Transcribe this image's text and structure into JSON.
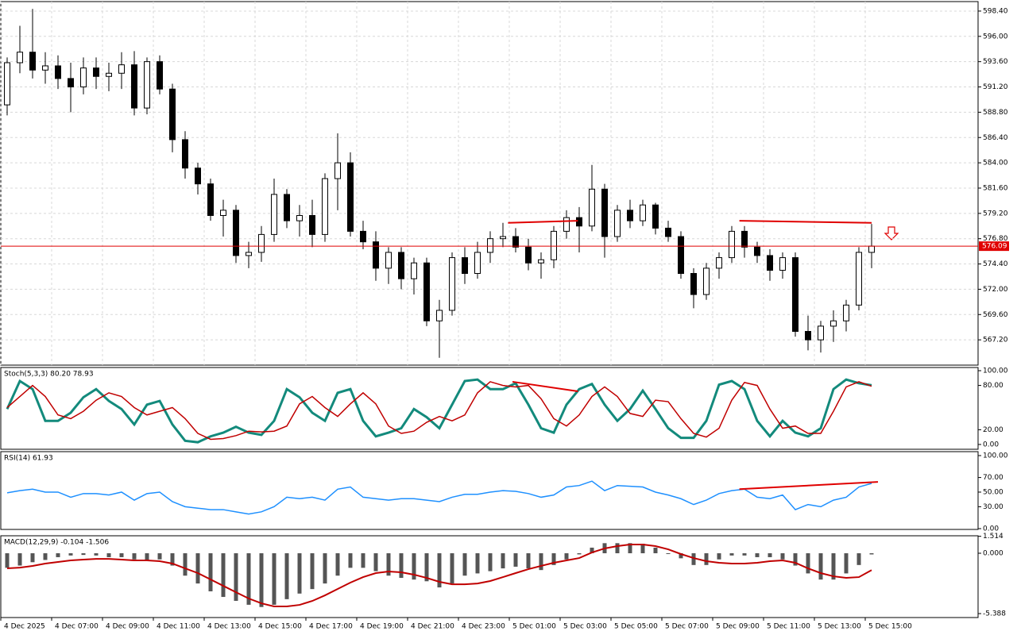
{
  "chart_data": [
    {
      "type": "candlestick",
      "grid": true,
      "bull_color": "#ffffff",
      "bear_color": "#000000",
      "categories": [
        "4 Dec 2025",
        null,
        null,
        null,
        "4 Dec 07:00",
        null,
        null,
        null,
        "4 Dec 09:00",
        null,
        null,
        null,
        "4 Dec 11:00",
        null,
        null,
        null,
        "4 Dec 13:00",
        null,
        null,
        null,
        "4 Dec 15:00",
        null,
        null,
        null,
        "4 Dec 17:00",
        null,
        null,
        null,
        "4 Dec 19:00",
        null,
        null,
        null,
        "4 Dec 21:00",
        null,
        null,
        null,
        "4 Dec 23:00",
        null,
        null,
        null,
        "5 Dec 01:00",
        null,
        null,
        null,
        "5 Dec 03:00",
        null,
        null,
        null,
        "5 Dec 05:00",
        null,
        null,
        null,
        "5 Dec 07:00",
        null,
        null,
        null,
        "5 Dec 09:00",
        null,
        null,
        null,
        "5 Dec 11:00",
        null,
        null,
        null,
        "5 Dec 13:00",
        null,
        null,
        null,
        "5 Dec 15:00"
      ],
      "open": [
        589.5,
        593.5,
        594.5,
        592.8,
        593.2,
        592.0,
        591.2,
        593.0,
        592.2,
        592.5,
        593.3,
        589.2,
        593.6,
        591.0,
        586.2,
        583.5,
        582.0,
        579.0,
        579.5,
        575.2,
        575.5,
        577.2,
        581.0,
        578.5,
        579.0,
        577.2,
        582.5,
        584.0,
        577.5,
        576.5,
        574.0,
        575.5,
        573.0,
        574.5,
        569.0,
        570.0,
        575.0,
        573.5,
        575.5,
        576.8,
        577.0,
        576.0,
        574.5,
        574.8,
        577.5,
        578.8,
        578.0,
        581.5,
        577.0,
        579.5,
        578.5,
        580.0,
        577.8,
        577.0,
        573.5,
        571.5,
        574.0,
        575.0,
        577.5,
        576.0,
        575.2,
        573.8,
        575.0,
        568.0,
        567.2,
        568.5,
        569.0,
        570.5,
        575.5
      ],
      "high": [
        594.0,
        597.0,
        598.6,
        594.5,
        594.2,
        593.5,
        594.0,
        594.0,
        593.5,
        594.5,
        594.6,
        594.0,
        594.2,
        591.5,
        587.0,
        584.0,
        582.5,
        580.5,
        580.0,
        576.5,
        578.0,
        582.5,
        581.5,
        580.0,
        580.5,
        583.0,
        586.8,
        585.0,
        578.5,
        577.5,
        576.0,
        576.0,
        575.0,
        575.0,
        571.0,
        575.5,
        576.0,
        576.5,
        577.5,
        578.3,
        577.8,
        576.8,
        575.5,
        578.0,
        579.5,
        579.8,
        583.8,
        582.0,
        580.0,
        580.5,
        580.5,
        580.2,
        578.5,
        577.5,
        574.0,
        574.5,
        575.5,
        578.0,
        578.0,
        576.5,
        575.8,
        575.5,
        575.5,
        569.5,
        569.0,
        570.0,
        571.0,
        576.0,
        578.2
      ],
      "low": [
        588.5,
        592.5,
        592.0,
        591.5,
        591.0,
        588.8,
        590.5,
        591.0,
        590.8,
        591.0,
        588.5,
        588.6,
        590.5,
        585.0,
        582.5,
        581.0,
        578.5,
        577.0,
        574.5,
        574.0,
        574.6,
        576.5,
        577.8,
        577.0,
        576.0,
        576.5,
        579.5,
        577.0,
        575.8,
        572.8,
        572.5,
        572.0,
        571.5,
        568.5,
        565.5,
        569.5,
        572.5,
        573.0,
        574.5,
        576.0,
        575.5,
        573.8,
        573.0,
        574.0,
        576.8,
        575.5,
        577.5,
        575.0,
        576.5,
        577.8,
        578.0,
        577.2,
        576.5,
        573.0,
        570.2,
        571.0,
        573.0,
        574.5,
        575.0,
        574.5,
        572.8,
        573.0,
        567.5,
        566.2,
        566.0,
        567.0,
        568.0,
        570.0,
        574.0
      ],
      "close": [
        593.5,
        594.5,
        592.8,
        593.2,
        592.0,
        591.2,
        593.0,
        592.2,
        592.5,
        593.3,
        589.2,
        593.6,
        591.0,
        586.2,
        583.5,
        582.0,
        579.0,
        579.5,
        575.2,
        575.5,
        577.2,
        581.0,
        578.5,
        579.0,
        577.2,
        582.5,
        584.0,
        577.5,
        576.5,
        574.0,
        575.5,
        573.0,
        574.5,
        569.0,
        570.0,
        575.0,
        573.5,
        575.5,
        576.8,
        577.0,
        576.0,
        574.5,
        574.8,
        577.5,
        578.8,
        578.0,
        581.5,
        577.0,
        579.5,
        578.5,
        580.0,
        577.8,
        577.0,
        573.5,
        571.5,
        574.0,
        575.0,
        577.5,
        576.0,
        575.2,
        573.8,
        575.0,
        568.0,
        567.2,
        568.5,
        569.0,
        570.5,
        575.5,
        576.09
      ],
      "last_price": 576.09,
      "last_price_color": "#e00000",
      "ylim": [
        564.8,
        599.3
      ],
      "yticks": [
        {
          "value": 598.4,
          "label": "598.40"
        },
        {
          "value": 596,
          "label": "596.00"
        },
        {
          "value": 593.6,
          "label": "593.60"
        },
        {
          "value": 591.2,
          "label": "591.20"
        },
        {
          "value": 588.8,
          "label": "588.80"
        },
        {
          "value": 586.4,
          "label": "586.40"
        },
        {
          "value": 584,
          "label": "584.00"
        },
        {
          "value": 581.6,
          "label": "581.60"
        },
        {
          "value": 579.2,
          "label": "579.20"
        },
        {
          "value": 576.8,
          "label": "576.80"
        },
        {
          "value": 574.4,
          "label": "574.40"
        },
        {
          "value": 572,
          "label": "572.00"
        },
        {
          "value": 569.6,
          "label": "569.60"
        },
        {
          "value": 567.2,
          "label": "567.20"
        }
      ],
      "trendlines": [
        {
          "x": [
            39.4,
            44.9
          ],
          "y": [
            578.3,
            578.5
          ],
          "color": "#e00000"
        },
        {
          "x": [
            57.6,
            68
          ],
          "y": [
            578.5,
            578.3
          ],
          "color": "#e00000"
        }
      ]
    },
    {
      "type": "line",
      "title": "Stoch(5,3,3) 80.20 78.93",
      "ylim": [
        -6.5,
        104.3
      ],
      "yticks": [
        {
          "value": 100,
          "label": "100.00"
        },
        {
          "value": 80,
          "label": "80.00"
        },
        {
          "value": 20,
          "label": "20.00"
        },
        {
          "value": 0,
          "label": "0.00"
        }
      ],
      "series": [
        {
          "color": "#138a7c",
          "width": 3,
          "values": [
            48,
            86,
            75,
            32,
            32,
            43,
            64,
            75,
            59,
            48,
            27,
            54,
            59,
            27,
            5,
            3,
            11,
            16,
            24,
            16,
            13,
            32,
            75,
            64,
            43,
            32,
            70,
            75,
            32,
            11,
            16,
            22,
            48,
            37,
            22,
            54,
            86,
            88,
            75,
            75,
            83,
            54,
            22,
            16,
            54,
            75,
            82,
            54,
            32,
            48,
            73,
            48,
            22,
            9,
            9,
            32,
            81,
            86,
            75,
            32,
            11,
            32,
            16,
            11,
            22,
            75,
            88,
            83,
            80.2
          ]
        },
        {
          "color": "#c00000",
          "width": 1.5,
          "values": [
            50,
            65,
            80,
            65,
            40,
            35,
            45,
            60,
            70,
            65,
            50,
            40,
            45,
            50,
            35,
            15,
            7,
            8,
            12,
            18,
            17,
            18,
            25,
            55,
            65,
            50,
            38,
            55,
            70,
            55,
            25,
            15,
            18,
            30,
            38,
            32,
            40,
            70,
            85,
            80,
            78,
            80,
            62,
            35,
            25,
            40,
            65,
            78,
            65,
            42,
            38,
            60,
            58,
            35,
            15,
            10,
            22,
            60,
            84,
            80,
            48,
            22,
            25,
            15,
            15,
            45,
            78,
            85,
            78.93
          ]
        }
      ],
      "trendlines": [
        {
          "x": [
            39.75,
            44.9
          ],
          "y": [
            85,
            72
          ],
          "color": "#e00000"
        }
      ]
    },
    {
      "type": "line",
      "title": "RSI(14) 61.93",
      "ylim": [
        -1.1,
        105.4
      ],
      "yticks": [
        {
          "value": 100,
          "label": "100.00"
        },
        {
          "value": 70,
          "label": "70.00"
        },
        {
          "value": 50,
          "label": "50.00"
        },
        {
          "value": 30,
          "label": "30.00"
        },
        {
          "value": 0,
          "label": "0.00"
        }
      ],
      "series": [
        {
          "color": "#1e90ff",
          "width": 1.5,
          "values": [
            49,
            52,
            54,
            50,
            50,
            43,
            48,
            48,
            46,
            50,
            39,
            48,
            50,
            37,
            30,
            28,
            26,
            26,
            23,
            20,
            23,
            30,
            43,
            41,
            43,
            39,
            54,
            57,
            43,
            41,
            39,
            41,
            41,
            39,
            37,
            43,
            47,
            47,
            50,
            52,
            51,
            48,
            43,
            46,
            57,
            59,
            65,
            52,
            59,
            58,
            57,
            50,
            46,
            41,
            33,
            39,
            48,
            52,
            54,
            43,
            41,
            46,
            26,
            33,
            30,
            39,
            43,
            57,
            61.93
          ]
        }
      ],
      "trendlines": [
        {
          "x": [
            57.6,
            68.5
          ],
          "y": [
            54,
            64
          ],
          "color": "#e00000"
        }
      ]
    },
    {
      "type": "combo",
      "title": "MACD(12,29,9) -0.104 -1.506",
      "ylim": [
        -5.74,
        1.56
      ],
      "yticks": [
        1.514,
        {
          "value": 0,
          "label": "0.000"
        },
        -5.388
      ],
      "series": [
        {
          "type": "bar",
          "color": "#555555",
          "values": [
            -1.3,
            -1.1,
            -0.8,
            -0.6,
            -0.35,
            -0.2,
            -0.15,
            -0.2,
            -0.35,
            -0.35,
            -0.55,
            -0.6,
            -0.55,
            -1.1,
            -2.0,
            -2.7,
            -3.4,
            -3.9,
            -4.25,
            -4.6,
            -4.8,
            -4.6,
            -4.1,
            -3.6,
            -3.2,
            -2.7,
            -2.0,
            -1.3,
            -1.3,
            -1.6,
            -2.0,
            -2.2,
            -2.35,
            -2.5,
            -3.05,
            -2.7,
            -2.0,
            -1.8,
            -1.6,
            -1.35,
            -1.2,
            -1.35,
            -1.5,
            -1.05,
            -0.55,
            -0.1,
            0.5,
            0.9,
            0.9,
            0.9,
            0.85,
            0.5,
            0.0,
            -0.45,
            -1.05,
            -1.05,
            -0.55,
            -0.2,
            -0.2,
            -0.35,
            -0.35,
            -0.55,
            -1.1,
            -1.8,
            -2.35,
            -2.35,
            -1.8,
            -1.05,
            -0.104
          ]
        },
        {
          "type": "line",
          "color": "#c00000",
          "width": 2,
          "values": [
            -1.35,
            -1.28,
            -1.13,
            -0.92,
            -0.78,
            -0.64,
            -0.57,
            -0.5,
            -0.5,
            -0.57,
            -0.64,
            -0.64,
            -0.71,
            -0.92,
            -1.35,
            -1.77,
            -2.34,
            -2.91,
            -3.48,
            -4.04,
            -4.47,
            -4.75,
            -4.75,
            -4.61,
            -4.26,
            -3.76,
            -3.19,
            -2.62,
            -2.13,
            -1.77,
            -1.63,
            -1.7,
            -1.91,
            -2.2,
            -2.55,
            -2.77,
            -2.77,
            -2.7,
            -2.48,
            -2.13,
            -1.77,
            -1.42,
            -1.13,
            -0.85,
            -0.64,
            -0.43,
            0.07,
            0.43,
            0.64,
            0.78,
            0.78,
            0.64,
            0.35,
            -0.07,
            -0.43,
            -0.71,
            -0.85,
            -0.92,
            -0.92,
            -0.85,
            -0.71,
            -0.64,
            -0.85,
            -1.35,
            -1.77,
            -2.06,
            -2.2,
            -2.13,
            -1.506
          ]
        }
      ]
    }
  ]
}
